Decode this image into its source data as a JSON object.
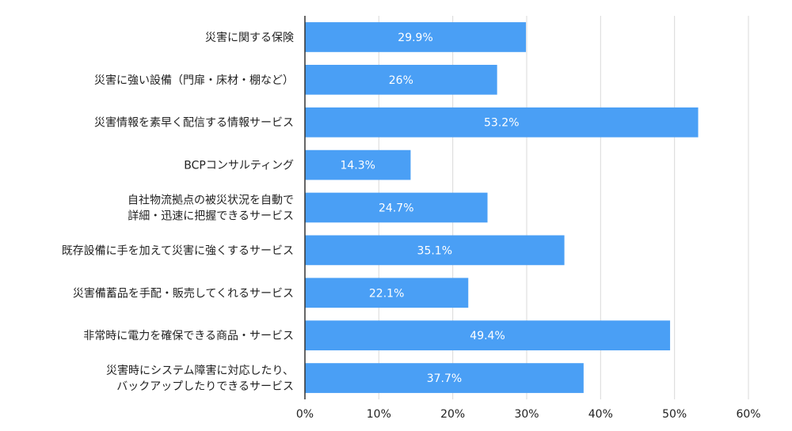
{
  "chart_data": {
    "type": "bar",
    "orientation": "horizontal",
    "categories": [
      [
        "災害に関する保険"
      ],
      [
        "災害に強い設備（門扉・床材・棚など）"
      ],
      [
        "災害情報を素早く配信する情報サービス"
      ],
      [
        "BCPコンサルティング"
      ],
      [
        "自社物流拠点の被災状況を自動で",
        "詳細・迅速に把握できるサービス"
      ],
      [
        "既存設備に手を加えて災害に強くするサービス"
      ],
      [
        "災害備蓄品を手配・販売してくれるサービス"
      ],
      [
        "非常時に電力を確保できる商品・サービス"
      ],
      [
        "災害時にシステム障害に対応したり、",
        "バックアップしたりできるサービス"
      ]
    ],
    "values": [
      29.9,
      26,
      53.2,
      14.3,
      24.7,
      35.1,
      22.1,
      49.4,
      37.7
    ],
    "data_labels": [
      "29.9%",
      "26%",
      "53.2%",
      "14.3%",
      "24.7%",
      "35.1%",
      "22.1%",
      "49.4%",
      "37.7%"
    ],
    "xlim": [
      0,
      60
    ],
    "x_ticks": [
      "0%",
      "10%",
      "20%",
      "30%",
      "40%",
      "50%",
      "60%"
    ],
    "bar_color": "#4a9ff5",
    "grid": true,
    "title": "",
    "xlabel": "",
    "ylabel": ""
  }
}
